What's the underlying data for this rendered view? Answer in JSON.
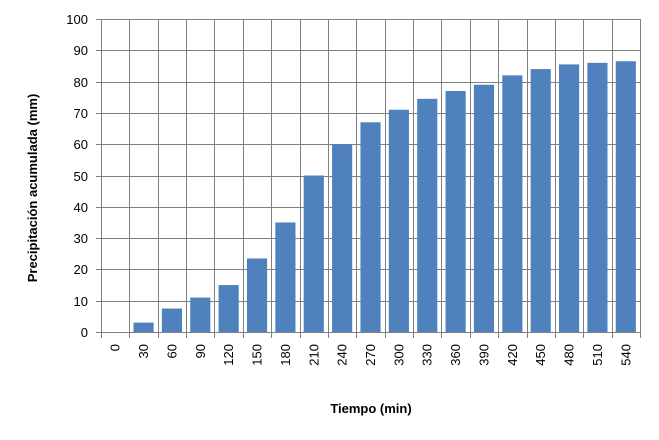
{
  "chart_data": {
    "type": "bar",
    "title": "",
    "xlabel": "Tiempo (min)",
    "ylabel": "Precipitación acumulada  (mm)",
    "categories": [
      "0",
      "30",
      "60",
      "90",
      "120",
      "150",
      "180",
      "210",
      "240",
      "270",
      "300",
      "330",
      "360",
      "390",
      "420",
      "450",
      "480",
      "510",
      "540"
    ],
    "values": [
      0,
      3,
      7.5,
      11,
      15,
      23.5,
      35,
      50,
      60,
      67,
      71,
      74.5,
      77,
      79,
      82,
      84,
      85.5,
      86,
      86.5
    ],
    "ylim": [
      0,
      100
    ],
    "yticks": [
      0,
      10,
      20,
      30,
      40,
      50,
      60,
      70,
      80,
      90,
      100
    ],
    "grid": true,
    "legend": "none",
    "colors": {
      "bar": "#4f81bd",
      "grid": "#808080",
      "background": "#ffffff"
    }
  }
}
